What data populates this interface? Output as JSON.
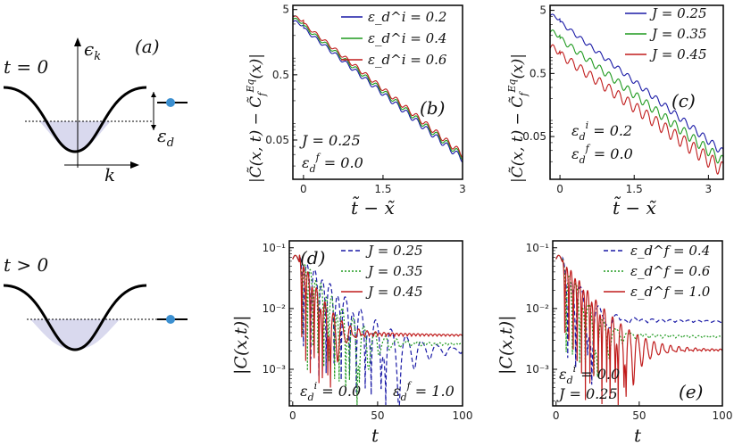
{
  "schematic_top": {
    "time_label": "t = 0",
    "energy_label": "ϵ",
    "energy_sub": "k",
    "momentum_label": "k",
    "panel_label": "(a)",
    "eps_label": "ε",
    "eps_sub": "d"
  },
  "schematic_bottom": {
    "time_label": "t > 0"
  },
  "colors": {
    "blue": "#1a1aa6",
    "green": "#1f9a1f",
    "red": "#c01c1c",
    "band_fill": "#d9d9ee",
    "dot": "#3b8fd0"
  },
  "chart_data": [
    {
      "id": "b",
      "type": "line",
      "panel_label": "(b)",
      "yscale": "log",
      "xlim": [
        -0.2,
        3.0
      ],
      "ylim": [
        0.0125,
        5.8
      ],
      "xticks": [
        0,
        1.5,
        3
      ],
      "xtick_labels": [
        "0",
        "1.5",
        "3"
      ],
      "yticks": [
        0.05,
        0.5,
        5
      ],
      "ytick_labels": [
        "0.05",
        "0.5",
        "5"
      ],
      "xlabel": "t̃ − x̃",
      "ylabel": "|C̃(x,t) − C̃_f^Eq(x)|",
      "annotations": [
        "J = 0.25",
        "ε_d^f = 0.0"
      ],
      "series": [
        {
          "name": "ε_d^i = 0.2",
          "color": "#1a1aa6",
          "amp0": 3.3,
          "decay": 1.83,
          "osc": 0.06
        },
        {
          "name": "ε_d^i = 0.4",
          "color": "#1f9a1f",
          "amp0": 3.6,
          "decay": 1.83,
          "osc": 0.06
        },
        {
          "name": "ε_d^i = 0.6",
          "color": "#c01c1c",
          "amp0": 3.9,
          "decay": 1.83,
          "osc": 0.06
        }
      ]
    },
    {
      "id": "c",
      "type": "line",
      "panel_label": "(c)",
      "yscale": "log",
      "xlim": [
        -0.2,
        3.3
      ],
      "ylim": [
        0.0105,
        6.0
      ],
      "xticks": [
        0,
        1.5,
        3
      ],
      "xtick_labels": [
        "0",
        "1.5",
        "3"
      ],
      "yticks": [
        0.05,
        0.5,
        5
      ],
      "ytick_labels": [
        "0.05",
        "0.5",
        "5"
      ],
      "xlabel": "t̃ − x̃",
      "ylabel": "|C̃(x,t) − C̃_f^Eq(x)|",
      "annotations": [
        "ε_d^i = 0.2",
        "ε_d^f = 0.0"
      ],
      "series": [
        {
          "name": "J = 0.25",
          "color": "#1a1aa6",
          "amp0": 4.2,
          "decay": 1.72,
          "osc": 0.07
        },
        {
          "name": "J = 0.35",
          "color": "#1f9a1f",
          "amp0": 2.3,
          "decay": 1.62,
          "osc": 0.1
        },
        {
          "name": "J = 0.45",
          "color": "#c01c1c",
          "amp0": 1.3,
          "decay": 1.52,
          "osc": 0.14
        }
      ]
    },
    {
      "id": "d",
      "type": "line",
      "panel_label": "(d)",
      "yscale": "log",
      "xlim": [
        -2,
        100
      ],
      "ylim": [
        0.00025,
        0.13
      ],
      "xticks": [
        0,
        50,
        100
      ],
      "xtick_labels": [
        "0",
        "50",
        "100"
      ],
      "yticks": [
        0.001,
        0.01,
        0.1
      ],
      "ytick_labels": [
        "10⁻³",
        "10⁻²",
        "10⁻¹"
      ],
      "xlabel": "t",
      "ylabel": "|C(x,t)|",
      "annotations": [
        "ε_d^i = 0.0",
        "ε_d^f = 1.0"
      ],
      "series": [
        {
          "name": "J = 0.25",
          "color": "#1a1aa6",
          "dash": "5,3",
          "plateau": 0.0019,
          "amp": 0.06,
          "decay": 16,
          "period": 9.0
        },
        {
          "name": "J = 0.35",
          "color": "#1f9a1f",
          "dash": "2,2",
          "plateau": 0.0024,
          "amp": 0.06,
          "decay": 11,
          "period": 6.3
        },
        {
          "name": "J = 0.45",
          "color": "#c01c1c",
          "dash": "",
          "plateau": 0.0034,
          "amp": 0.06,
          "decay": 7,
          "period": 5.0
        }
      ]
    },
    {
      "id": "e",
      "type": "line",
      "panel_label": "(e)",
      "yscale": "log",
      "xlim": [
        -2,
        100
      ],
      "ylim": [
        0.00025,
        0.13
      ],
      "xticks": [
        0,
        50,
        100
      ],
      "xtick_labels": [
        "0",
        "50",
        "100"
      ],
      "yticks": [
        0.001,
        0.01,
        0.1
      ],
      "ytick_labels": [
        "10⁻³",
        "10⁻²",
        "10⁻¹"
      ],
      "xlabel": "t",
      "ylabel": "|C(x,t)|",
      "annotations": [
        "ε_d^i = 0.0",
        "J = 0.25"
      ],
      "series": [
        {
          "name": "ε_d^f = 0.4",
          "color": "#1a1aa6",
          "dash": "5,3",
          "plateau": 0.0058,
          "amp": 0.05,
          "decay": 8,
          "period": 11.0
        },
        {
          "name": "ε_d^f = 0.6",
          "color": "#1f9a1f",
          "dash": "2,2",
          "plateau": 0.0032,
          "amp": 0.05,
          "decay": 8,
          "period": 8.0
        },
        {
          "name": "ε_d^f = 1.0",
          "color": "#c01c1c",
          "dash": "",
          "plateau": 0.0019,
          "amp": 0.05,
          "decay": 12,
          "period": 5.0
        }
      ]
    }
  ]
}
